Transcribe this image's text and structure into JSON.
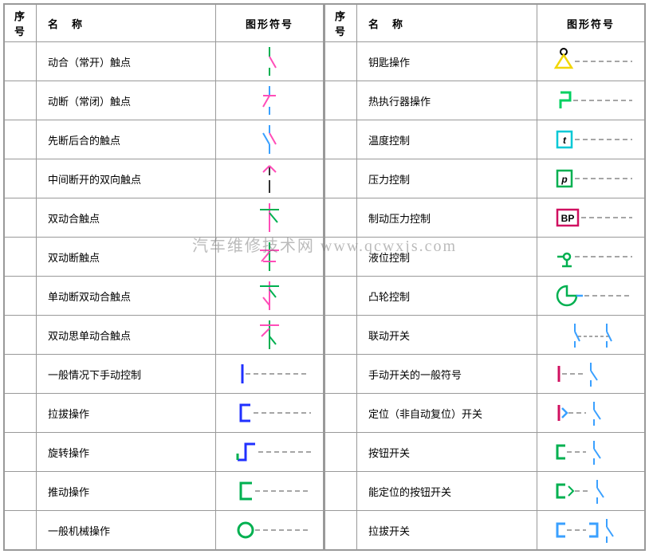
{
  "headers": {
    "seq": "序号",
    "name": "名　称",
    "symbol": "图形符号"
  },
  "watermark": "汽车维修技术网 www.qcwxjs.com",
  "colors": {
    "border": "#999999",
    "text": "#000000",
    "dash": "#888888"
  },
  "left_rows": [
    {
      "name": "动合（常开）触点",
      "symbol": "no_contact"
    },
    {
      "name": "动断（常闭）触点",
      "symbol": "nc_contact"
    },
    {
      "name": "先断后合的触点",
      "symbol": "break_before_make"
    },
    {
      "name": "中间断开的双向触点",
      "symbol": "bidir_center_off"
    },
    {
      "name": "双动合触点",
      "symbol": "double_no"
    },
    {
      "name": "双动断触点",
      "symbol": "double_nc"
    },
    {
      "name": "单动断双动合触点",
      "symbol": "single_nc_double_no"
    },
    {
      "name": "双动思单动合触点",
      "symbol": "double_nc_single_no"
    },
    {
      "name": "一般情况下手动控制",
      "symbol": "manual_general"
    },
    {
      "name": "拉拔操作",
      "symbol": "pull"
    },
    {
      "name": "旋转操作",
      "symbol": "rotate"
    },
    {
      "name": "推动操作",
      "symbol": "push"
    },
    {
      "name": "一般机械操作",
      "symbol": "mech_general"
    }
  ],
  "right_rows": [
    {
      "name": "钥匙操作",
      "symbol": "key"
    },
    {
      "name": "热执行器操作",
      "symbol": "thermal"
    },
    {
      "name": "温度控制",
      "symbol": "temp_ctrl"
    },
    {
      "name": "压力控制",
      "symbol": "press_ctrl"
    },
    {
      "name": "制动压力控制",
      "symbol": "brake_press"
    },
    {
      "name": "液位控制",
      "symbol": "level"
    },
    {
      "name": "凸轮控制",
      "symbol": "cam"
    },
    {
      "name": "联动开关",
      "symbol": "linked_switch"
    },
    {
      "name": "手动开关的一般符号",
      "symbol": "manual_switch"
    },
    {
      "name": "定位（非自动复位）开关",
      "symbol": "latch_switch"
    },
    {
      "name": "按钮开关",
      "symbol": "push_switch"
    },
    {
      "name": "能定位的按钮开关",
      "symbol": "latch_push_switch"
    },
    {
      "name": "拉拔开关",
      "symbol": "pull_switch"
    }
  ],
  "symbol_defs": {
    "no_contact": {
      "stroke": "#ff4db8",
      "aux": "#00b050"
    },
    "nc_contact": {
      "stroke": "#ff4db8",
      "aux": "#3aa0ff"
    },
    "break_before_make": {
      "stroke": "#3aa0ff",
      "aux": "#ff4db8"
    },
    "bidir_center_off": {
      "stroke": "#ff4db8",
      "aux": "#333333"
    },
    "double_no": {
      "stroke": "#00b050",
      "aux": "#ff4db8"
    },
    "double_nc": {
      "stroke": "#ff4db8",
      "aux": "#00b050"
    },
    "single_nc_double_no": {
      "stroke": "#00b050",
      "aux": "#ff4db8"
    },
    "double_nc_single_no": {
      "stroke": "#ff4db8",
      "aux": "#00b050"
    },
    "manual_general": {
      "stroke": "#2030ff"
    },
    "pull": {
      "stroke": "#2030ff"
    },
    "rotate": {
      "stroke": "#2030ff",
      "aux": "#00b050"
    },
    "push": {
      "stroke": "#00b050"
    },
    "mech_general": {
      "stroke": "#00b050"
    },
    "key": {
      "stroke": "#f2d600"
    },
    "thermal": {
      "stroke": "#00d060"
    },
    "temp_ctrl": {
      "stroke": "#00c8d6",
      "text": "t"
    },
    "press_ctrl": {
      "stroke": "#00b050",
      "text": "p"
    },
    "brake_press": {
      "stroke": "#d01060",
      "text": "BP"
    },
    "level": {
      "stroke": "#00b050"
    },
    "cam": {
      "stroke": "#00b050",
      "aux": "#3aa0ff"
    },
    "linked_switch": {
      "stroke": "#3aa0ff",
      "aux": "#888888"
    },
    "manual_switch": {
      "stroke": "#d01060",
      "aux": "#3aa0ff"
    },
    "latch_switch": {
      "stroke": "#3aa0ff",
      "aux": "#d01060"
    },
    "push_switch": {
      "stroke": "#00b050",
      "aux": "#3aa0ff"
    },
    "latch_push_switch": {
      "stroke": "#00b050",
      "aux": "#3aa0ff"
    },
    "pull_switch": {
      "stroke": "#3aa0ff"
    }
  }
}
